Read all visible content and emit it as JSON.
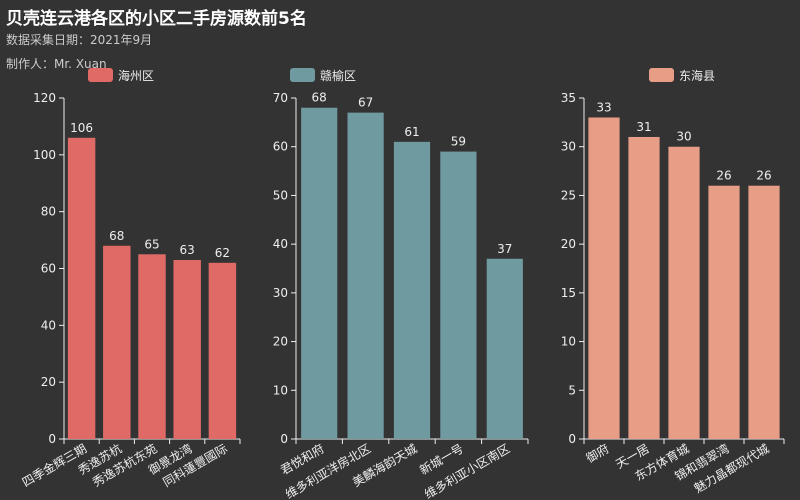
{
  "header": {
    "title": "贝壳连云港各区的小区二手房源数前5名",
    "subtitle": "数据采集日期：2021年9月",
    "author": "制作人：Mr. Xuan"
  },
  "chart_data": [
    {
      "type": "bar",
      "series_name": "海州区",
      "color": "#e06a66",
      "categories": [
        "四季金辉三期",
        "秀逸苏杭",
        "秀逸苏杭东苑",
        "御景龙湾",
        "同科蓮豐國际"
      ],
      "values": [
        106,
        68,
        65,
        63,
        62
      ],
      "ylim": [
        0,
        120
      ],
      "yticks": [
        0,
        20,
        40,
        60,
        80,
        100,
        120
      ],
      "legend": "top"
    },
    {
      "type": "bar",
      "series_name": "赣榆区",
      "color": "#6f9aa0",
      "categories": [
        "君悦和府",
        "维多利亚洋房北区",
        "美麟海韵天城",
        "新城一号",
        "维多利亚小区南区"
      ],
      "values": [
        68,
        67,
        61,
        59,
        37
      ],
      "ylim": [
        0,
        70
      ],
      "yticks": [
        0,
        10,
        20,
        30,
        40,
        50,
        60,
        70
      ],
      "legend": "top"
    },
    {
      "type": "bar",
      "series_name": "东海县",
      "color": "#e89e86",
      "categories": [
        "御府",
        "天一居",
        "东方体育城",
        "锦和翡翠湾",
        "魅力晶都现代城"
      ],
      "values": [
        33,
        31,
        30,
        26,
        26
      ],
      "ylim": [
        0,
        35
      ],
      "yticks": [
        0,
        5,
        10,
        15,
        20,
        25,
        30,
        35
      ],
      "legend": "top"
    }
  ]
}
